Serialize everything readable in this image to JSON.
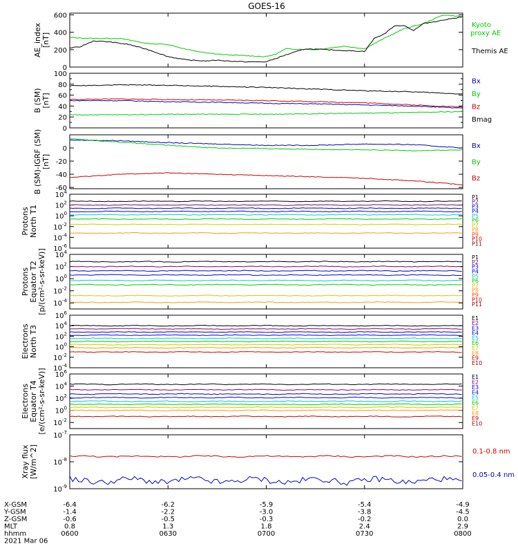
{
  "title": "GOES-16",
  "x_axis": {
    "ticks": [
      "0600",
      "0630",
      "0700",
      "0730",
      "0800"
    ],
    "tick_hours": [
      6.0,
      6.5,
      7.0,
      7.5,
      8.0
    ],
    "range_hours": [
      6.0,
      8.0
    ],
    "rows": [
      {
        "label": "X-GSM",
        "values": [
          "-6.4",
          "-6.2",
          "-5.9",
          "-5.4",
          "-4.9"
        ]
      },
      {
        "label": "Y-GSM",
        "values": [
          "-1.4",
          "-2.2",
          "-3.0",
          "-3.8",
          "-4.5"
        ]
      },
      {
        "label": "Z-GSM",
        "values": [
          "-0.6",
          "-0.5",
          "-0.3",
          "-0.2",
          "0.0"
        ]
      },
      {
        "label": "MLT",
        "values": [
          "0.8",
          "1.3",
          "1.8",
          "2.4",
          "2.9"
        ]
      },
      {
        "label": "hhmm",
        "values": [
          "0600",
          "0630",
          "0700",
          "0730",
          "0800"
        ]
      }
    ],
    "date": "2021 Mar 06"
  },
  "colors": {
    "black": "#000000",
    "blue": "#0000cc",
    "green": "#00cc00",
    "red": "#cc0000",
    "navy": "#000080",
    "cyan": "#00cccc",
    "yellow": "#cccc00",
    "orange": "#ff9900",
    "purple": "#800080"
  },
  "chart_data": [
    {
      "type": "line",
      "ylabel": "AE_index\n[nT]",
      "ylim": [
        0,
        620
      ],
      "yticks": [
        {
          "v": 0,
          "t": "0"
        },
        {
          "v": 200,
          "t": "200"
        },
        {
          "v": 400,
          "t": "400"
        },
        {
          "v": 600,
          "t": "600"
        }
      ],
      "log": false,
      "series": [
        {
          "name": "Kyoto\nproxy AE",
          "color": "#00cc00",
          "x": [
            6.0,
            6.1,
            6.25,
            6.4,
            6.5,
            6.6,
            6.7,
            6.8,
            6.9,
            7.0,
            7.05,
            7.1,
            7.25,
            7.4,
            7.5,
            7.6,
            7.7,
            7.8,
            7.9,
            8.0
          ],
          "y": [
            340,
            330,
            330,
            270,
            260,
            200,
            160,
            140,
            130,
            120,
            150,
            210,
            200,
            240,
            210,
            330,
            440,
            500,
            600,
            580
          ]
        },
        {
          "name": "Themis AE",
          "color": "#000000",
          "x": [
            6.0,
            6.05,
            6.12,
            6.2,
            6.3,
            6.4,
            6.5,
            6.6,
            6.7,
            6.75,
            6.8,
            6.9,
            7.0,
            7.1,
            7.2,
            7.3,
            7.4,
            7.5,
            7.55,
            7.6,
            7.65,
            7.7,
            7.75,
            7.8,
            7.9,
            8.0
          ],
          "y": [
            220,
            230,
            300,
            290,
            260,
            200,
            120,
            80,
            70,
            80,
            70,
            60,
            60,
            140,
            210,
            200,
            190,
            180,
            330,
            380,
            470,
            480,
            420,
            500,
            540,
            580
          ]
        }
      ]
    },
    {
      "type": "line",
      "ylabel": "B (SM)\n[nT]",
      "ylim": [
        0,
        100
      ],
      "yticks": [
        {
          "v": 0,
          "t": "0"
        },
        {
          "v": 10,
          "t": ""
        },
        {
          "v": 20,
          "t": "20"
        },
        {
          "v": 30,
          "t": ""
        },
        {
          "v": 40,
          "t": "40"
        },
        {
          "v": 50,
          "t": ""
        },
        {
          "v": 60,
          "t": "60"
        },
        {
          "v": 70,
          "t": ""
        },
        {
          "v": 80,
          "t": "80"
        },
        {
          "v": 90,
          "t": ""
        },
        {
          "v": 100,
          "t": "100"
        }
      ],
      "log": false,
      "series": [
        {
          "name": "Bx",
          "color": "#0000cc",
          "x": [
            6.0,
            6.25,
            6.5,
            6.75,
            7.0,
            7.25,
            7.5,
            7.75,
            8.0
          ],
          "y": [
            50,
            50,
            48,
            47,
            45,
            44,
            42,
            40,
            36
          ]
        },
        {
          "name": "By",
          "color": "#00cc00",
          "x": [
            6.0,
            6.25,
            6.5,
            6.75,
            7.0,
            7.25,
            7.5,
            7.75,
            8.0
          ],
          "y": [
            24,
            24,
            25,
            25,
            25,
            26,
            27,
            28,
            30
          ]
        },
        {
          "name": "Bz",
          "color": "#cc0000",
          "x": [
            6.0,
            6.25,
            6.5,
            6.75,
            7.0,
            7.25,
            7.5,
            7.75,
            8.0
          ],
          "y": [
            52,
            53,
            52,
            51,
            50,
            48,
            46,
            42,
            38
          ]
        },
        {
          "name": "Bmag",
          "color": "#000000",
          "x": [
            6.0,
            6.25,
            6.5,
            6.75,
            7.0,
            7.25,
            7.5,
            7.75,
            8.0
          ],
          "y": [
            77,
            79,
            78,
            76,
            74,
            71,
            68,
            66,
            62
          ]
        }
      ]
    },
    {
      "type": "line",
      "ylabel": "B (SM)-IGRF (SM)\n[nT]",
      "ylim": [
        -62,
        20
      ],
      "yticks": [
        {
          "v": -60,
          "t": "-60"
        },
        {
          "v": -40,
          "t": "-40"
        },
        {
          "v": -20,
          "t": "-20"
        },
        {
          "v": 0,
          "t": "0"
        }
      ],
      "log": false,
      "series": [
        {
          "name": "Bx",
          "color": "#0000cc",
          "x": [
            6.0,
            6.25,
            6.5,
            6.75,
            7.0,
            7.25,
            7.5,
            7.75,
            8.0
          ],
          "y": [
            12,
            11,
            8,
            6,
            4,
            4,
            6,
            5,
            0
          ]
        },
        {
          "name": "By",
          "color": "#00cc00",
          "x": [
            6.0,
            6.25,
            6.5,
            6.75,
            7.0,
            7.25,
            7.5,
            7.75,
            8.0
          ],
          "y": [
            14,
            9,
            4,
            0,
            -1,
            -2,
            -3,
            -4,
            -3
          ]
        },
        {
          "name": "Bz",
          "color": "#cc0000",
          "x": [
            6.0,
            6.25,
            6.5,
            6.75,
            7.0,
            7.25,
            7.5,
            7.75,
            8.0
          ],
          "y": [
            -45,
            -40,
            -38,
            -40,
            -42,
            -44,
            -46,
            -50,
            -56
          ]
        }
      ]
    },
    {
      "type": "line",
      "ylabel": "Protons\nNorth T1",
      "ylim": [
        -6,
        4
      ],
      "yticks": [
        {
          "v": -6,
          "t": "10^-6"
        },
        {
          "v": -4,
          "t": "10^-4"
        },
        {
          "v": -2,
          "t": "10^-2"
        },
        {
          "v": 0,
          "t": "10^0"
        },
        {
          "v": 2,
          "t": "10^2"
        },
        {
          "v": 4,
          "t": "10^4"
        }
      ],
      "log": true,
      "series": [
        {
          "name": "P1",
          "color": "#000000",
          "level": 2.7
        },
        {
          "name": "P2",
          "color": "#800080",
          "level": 2.0
        },
        {
          "name": "P3",
          "color": "#0000cc",
          "level": 1.4
        },
        {
          "name": "P4",
          "color": "#0000ff",
          "level": 0.8
        },
        {
          "name": "P5",
          "color": "#00cccc",
          "level": 0.2
        },
        {
          "name": "P6",
          "color": "#00cc00",
          "level": -0.6
        },
        {
          "name": "P7",
          "color": "#cccc00",
          "level": -1.6
        },
        {
          "name": "P8",
          "color": "#ff9900",
          "level": -3.2
        },
        {
          "name": "P9",
          "color": "#ff4400",
          "level": null
        },
        {
          "name": "P10",
          "color": "#cc0000",
          "level": null
        },
        {
          "name": "P11",
          "color": "#880000",
          "level": null
        }
      ]
    },
    {
      "type": "line",
      "ylabel": "Protons\nEquator T2\n[p/(cm²-s-sr-keV)]",
      "ylim": [
        -5,
        4
      ],
      "yticks": [
        {
          "v": -4,
          "t": "10^-4"
        },
        {
          "v": -2,
          "t": "10^-2"
        },
        {
          "v": 0,
          "t": "10^0"
        },
        {
          "v": 2,
          "t": "10^2"
        },
        {
          "v": 4,
          "t": "10^4"
        }
      ],
      "log": true,
      "series": [
        {
          "name": "P1",
          "color": "#000000",
          "level": 2.8
        },
        {
          "name": "P2",
          "color": "#800080",
          "level": 2.0
        },
        {
          "name": "P3",
          "color": "#0000cc",
          "level": 1.3
        },
        {
          "name": "P4",
          "color": "#0000ff",
          "level": 0.6
        },
        {
          "name": "P5",
          "color": "#00cccc",
          "level": -0.3
        },
        {
          "name": "P6",
          "color": "#00cc00",
          "level": -1.0
        },
        {
          "name": "P7",
          "color": "#cccc00",
          "level": -2.8
        },
        {
          "name": "P8",
          "color": "#ff9900",
          "level": -3.9
        },
        {
          "name": "P9",
          "color": "#ff4400",
          "level": null
        },
        {
          "name": "P10",
          "color": "#cc0000",
          "level": null
        },
        {
          "name": "P11",
          "color": "#880000",
          "level": null
        }
      ]
    },
    {
      "type": "line",
      "ylabel": "Electrons\nNorth T3",
      "ylim": [
        -4,
        6
      ],
      "yticks": [
        {
          "v": -4,
          "t": "10^-4"
        },
        {
          "v": -2,
          "t": "10^-2"
        },
        {
          "v": 0,
          "t": "10^0"
        },
        {
          "v": 2,
          "t": "10^2"
        },
        {
          "v": 4,
          "t": "10^4"
        },
        {
          "v": 6,
          "t": "10^6"
        }
      ],
      "log": true,
      "series": [
        {
          "name": "E1",
          "color": "#000000",
          "level": 4.0
        },
        {
          "name": "E2",
          "color": "#800080",
          "level": 3.4
        },
        {
          "name": "E3",
          "color": "#0000cc",
          "level": 2.8
        },
        {
          "name": "E4",
          "color": "#0000ff",
          "level": 2.2
        },
        {
          "name": "E5",
          "color": "#00cccc",
          "level": 1.6
        },
        {
          "name": "E6",
          "color": "#00cc00",
          "level": 1.0
        },
        {
          "name": "E7",
          "color": "#cccc00",
          "level": 0.4
        },
        {
          "name": "E8",
          "color": "#ff9900",
          "level": -0.2
        },
        {
          "name": "E9",
          "color": "#cc0000",
          "level": -1.0
        },
        {
          "name": "E10",
          "color": "#880000",
          "level": null
        }
      ]
    },
    {
      "type": "line",
      "ylabel": "Electrons\nEquator T4\n[e/(cm²-s-sr-keV)]",
      "ylim": [
        -3,
        6
      ],
      "yticks": [
        {
          "v": -2,
          "t": "10^-2"
        },
        {
          "v": 0,
          "t": "10^0"
        },
        {
          "v": 2,
          "t": "10^2"
        },
        {
          "v": 4,
          "t": "10^4"
        },
        {
          "v": 6,
          "t": "10^6"
        }
      ],
      "log": true,
      "series": [
        {
          "name": "E1",
          "color": "#000000",
          "level": 4.3
        },
        {
          "name": "E2",
          "color": "#800080",
          "level": 3.4
        },
        {
          "name": "E3",
          "color": "#0000cc",
          "level": 2.7
        },
        {
          "name": "E4",
          "color": "#0000ff",
          "level": 2.1
        },
        {
          "name": "E5",
          "color": "#00cccc",
          "level": 1.5
        },
        {
          "name": "E6",
          "color": "#00cc00",
          "level": 1.0
        },
        {
          "name": "E7",
          "color": "#cccc00",
          "level": 0.5
        },
        {
          "name": "E8",
          "color": "#ff9900",
          "level": 0.0
        },
        {
          "name": "E9",
          "color": "#cc0000",
          "level": -1.0
        },
        {
          "name": "E10",
          "color": "#880000",
          "level": null
        }
      ]
    },
    {
      "type": "line",
      "ylabel": "Xray flux\n[W/m^2]",
      "ylim": [
        -9,
        -7
      ],
      "yticks": [
        {
          "v": -9,
          "t": "10^-9"
        },
        {
          "v": -8,
          "t": "10^-8"
        },
        {
          "v": -7,
          "t": "10^-7"
        }
      ],
      "log": true,
      "series": [
        {
          "name": "0.1-0.8 nm",
          "color": "#cc0000",
          "level": -7.8
        },
        {
          "name": "0.05-0.4 nm",
          "color": "#0000cc",
          "level": -8.7
        }
      ]
    }
  ]
}
